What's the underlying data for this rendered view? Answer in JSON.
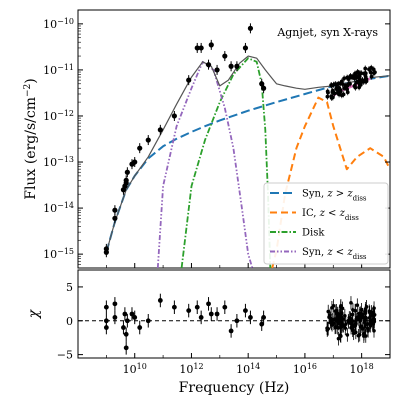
{
  "chart_data": [
    {
      "type": "line",
      "title": "",
      "annotation": "Agnjet, syn X-rays",
      "xlabel": "",
      "ylabel_parts": [
        "Flux (erg/s/cm",
        "−2",
        ")"
      ],
      "xscale": "log",
      "yscale": "log",
      "xlim": [
        100000000.0,
        1e+19
      ],
      "ylim": [
        5e-16,
        2e-10
      ],
      "yticks": [
        {
          "value": 1e-15,
          "base": "10",
          "exp": "−15"
        },
        {
          "value": 1e-14,
          "base": "10",
          "exp": "−14"
        },
        {
          "value": 1e-13,
          "base": "10",
          "exp": "−13"
        },
        {
          "value": 1e-12,
          "base": "10",
          "exp": "−12"
        },
        {
          "value": 1e-11,
          "base": "10",
          "exp": "−11"
        },
        {
          "value": 1e-10,
          "base": "10",
          "exp": "−10"
        }
      ],
      "legend_position": "lower-right",
      "legend": [
        {
          "label": "Syn, ",
          "math": "z > z",
          "sub": "diss",
          "color": "#1f77b4",
          "dash": "9,4"
        },
        {
          "label": "IC, ",
          "math": "z < z",
          "sub": "diss",
          "color": "#ff7f0e",
          "dash": "7,4"
        },
        {
          "label": "Disk",
          "math": "",
          "sub": "",
          "color": "#2ca02c",
          "dash": "6,2,1.5,2"
        },
        {
          "label": "Syn, ",
          "math": "z < z",
          "sub": "diss",
          "color": "#9467bd",
          "dash": "5,2,1.5,2,1.5,2"
        }
      ],
      "series": [
        {
          "key": "syn_outer",
          "color": "#1f77b4",
          "x": [
            1000000000.0,
            2000000000.0,
            5000000000.0,
            10000000000.0,
            30000000000.0,
            100000000000.0,
            300000000000.0,
            1000000000000.0,
            3000000000000.0,
            10000000000000.0,
            100000000000000.0,
            1000000000000000.0,
            1e+16,
            1e+17,
            1e+18,
            1e+19
          ],
          "y": [
            1.1e-15,
            5e-15,
            2.5e-14,
            5e-14,
            1.2e-13,
            2.2e-13,
            3.2e-13,
            4.5e-13,
            6e-13,
            8e-13,
            1.3e-12,
            2e-12,
            3e-12,
            4.5e-12,
            6e-12,
            7.5e-12
          ]
        },
        {
          "key": "ic_inner",
          "color": "#ff7f0e",
          "x": [
            700000000000000.0,
            1000000000000000.0,
            2000000000000000.0,
            5000000000000000.0,
            1e+16,
            3e+16,
            6e+16,
            1e+17,
            3e+17,
            7e+17,
            2e+18,
            6e+18,
            1e+19
          ],
          "y": [
            5e-16,
            1.2e-15,
            2e-14,
            2e-13,
            6e-13,
            2.5e-12,
            2e-12,
            6e-13,
            7e-14,
            1.3e-13,
            2e-13,
            1.3e-13,
            7e-14
          ]
        },
        {
          "key": "disk",
          "color": "#2ca02c",
          "x": [
            450000000000.0,
            1000000000000.0,
            3000000000000.0,
            10000000000000.0,
            30000000000000.0,
            100000000000000.0,
            200000000000000.0,
            300000000000000.0,
            400000000000000.0,
            500000000000000.0,
            600000000000000.0
          ],
          "y": [
            5e-16,
            3e-14,
            3e-13,
            2e-12,
            8e-12,
            1.8e-11,
            1.5e-11,
            5e-12,
            5e-13,
            2e-14,
            5e-16
          ]
        },
        {
          "key": "syn_inner",
          "color": "#9467bd",
          "x": [
            65000000000.0,
            100000000000.0,
            300000000000.0,
            1000000000000.0,
            2500000000000.0,
            6000000000000.0,
            15000000000000.0,
            30000000000000.0,
            60000000000000.0,
            100000000000000.0,
            140000000000000.0
          ],
          "y": [
            5e-16,
            3e-14,
            6e-13,
            4e-12,
            1.5e-11,
            1e-11,
            1.5e-12,
            2e-13,
            1e-14,
            1e-15,
            5e-16
          ]
        },
        {
          "key": "total",
          "color": "#555555",
          "x": [
            1000000000.0,
            2000000000.0,
            5000000000.0,
            10000000000.0,
            30000000000.0,
            100000000000.0,
            300000000000.0,
            1000000000000.0,
            2500000000000.0,
            5000000000000.0,
            10000000000000.0,
            20000000000000.0,
            50000000000000.0,
            100000000000000.0,
            200000000000000.0,
            400000000000000.0,
            700000000000000.0,
            1000000000000000.0,
            2000000000000000.0,
            5000000000000000.0,
            1e+16,
            3e+16,
            1e+17,
            3e+17,
            1e+18,
            3e+18,
            1e+19
          ],
          "y": [
            1.1e-15,
            5e-15,
            2.5e-14,
            5e-14,
            1.3e-13,
            5e-13,
            1.8e-12,
            7e-12,
            1.5e-11,
            1.2e-11,
            4.5e-12,
            6e-12,
            1.4e-11,
            2e-11,
            1.8e-11,
            1e-11,
            6.5e-12,
            5e-12,
            4.5e-12,
            4e-12,
            3.8e-12,
            4.2e-12,
            4.5e-12,
            5.2e-12,
            6e-12,
            7e-12,
            7.5e-12
          ]
        },
        {
          "key": "xray_model",
          "color": "#e377c2",
          "x": [
            1e+17,
            2e+17,
            5e+17,
            1e+18,
            2e+18
          ],
          "y": [
            2.8e-12,
            3.6e-12,
            4.5e-12,
            5.3e-12,
            6.5e-12
          ]
        }
      ],
      "points": {
        "x": [
          1000000000.0,
          1000000000.0,
          2000000000.0,
          2000000000.0,
          4000000000.0,
          4500000000.0,
          5000000000.0,
          5000000000.0,
          5500000000.0,
          8000000000.0,
          10000000000.0,
          15000000000.0,
          30000000000.0,
          80000000000.0,
          250000000000.0,
          800000000000.0,
          1600000000000.0,
          2200000000000.0,
          4000000000000.0,
          5000000000000.0,
          8000000000000.0,
          15000000000000.0,
          25000000000000.0,
          40000000000000.0,
          80000000000000.0,
          120000000000000.0,
          300000000000000.0,
          350000000000000.0
        ],
        "y": [
          1.3e-15,
          1.1e-15,
          9e-15,
          6e-15,
          2.5e-14,
          3e-14,
          4e-14,
          3.5e-14,
          6e-14,
          9e-14,
          1e-13,
          2e-13,
          3e-13,
          5e-13,
          1e-12,
          6e-12,
          3e-11,
          3e-11,
          1.3e-11,
          3.5e-11,
          1e-11,
          2e-11,
          1.2e-11,
          1.2e-11,
          3e-11,
          8e-11,
          5e-12,
          4e-12
        ]
      },
      "xray_points": {
        "x_range": [
          6e+16,
          3e+18
        ],
        "y_range": [
          1.5e-12,
          1.2e-11
        ]
      }
    },
    {
      "type": "scatter",
      "xlabel": "Frequency (Hz)",
      "ylabel": "χ",
      "xscale": "log",
      "xlim": [
        100000000.0,
        1e+19
      ],
      "ylim": [
        -5.5,
        7.5
      ],
      "xticks": [
        {
          "value": 10000000000.0,
          "base": "10",
          "exp": "10"
        },
        {
          "value": 1000000000000.0,
          "base": "10",
          "exp": "12"
        },
        {
          "value": 100000000000000.0,
          "base": "10",
          "exp": "14"
        },
        {
          "value": 1e+16,
          "base": "10",
          "exp": "16"
        },
        {
          "value": 1e+18,
          "base": "10",
          "exp": "18"
        }
      ],
      "yticks": [
        {
          "value": -5,
          "label": "−5"
        },
        {
          "value": 0,
          "label": "0"
        },
        {
          "value": 5,
          "label": "5"
        }
      ],
      "zero_line": true,
      "points": {
        "x": [
          1000000000.0,
          1000000000.0,
          1000000000.0,
          2000000000.0,
          2000000000.0,
          4000000000.0,
          4500000000.0,
          5000000000.0,
          5000000000.0,
          5500000000.0,
          8000000000.0,
          10000000000.0,
          15000000000.0,
          30000000000.0,
          80000000000.0,
          250000000000.0,
          800000000000.0,
          1600000000000.0,
          2200000000000.0,
          4000000000000.0,
          5000000000000.0,
          8000000000000.0,
          15000000000000.0,
          25000000000000.0,
          40000000000000.0,
          80000000000000.0,
          120000000000000.0,
          300000000000000.0,
          350000000000000.0
        ],
        "y": [
          2,
          0,
          -1,
          2.5,
          0.5,
          -1,
          1,
          -2,
          -4,
          0,
          1,
          0.5,
          -1,
          0,
          3,
          2,
          1.5,
          2,
          0.5,
          2.5,
          1,
          1,
          2,
          -1.5,
          0,
          1.5,
          0.5,
          -0.5,
          0.5
        ],
        "err": [
          1,
          1,
          1,
          1,
          1,
          1,
          1,
          1,
          1,
          1,
          1,
          1,
          1,
          1,
          1,
          1,
          1,
          1,
          1,
          1,
          1,
          1,
          1,
          1,
          1,
          1,
          1,
          1,
          1
        ]
      },
      "xray_points": {
        "x_range": [
          6e+16,
          3e+18
        ],
        "y_range": [
          -3,
          4
        ]
      }
    }
  ]
}
